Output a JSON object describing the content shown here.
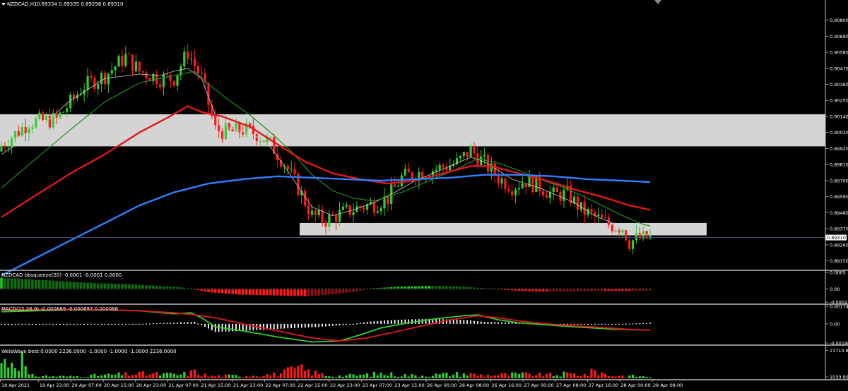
{
  "header": {
    "symbol": "NZDCAD,H1",
    "ohlc": "0.89334 0.89335 0.89298 0.89310"
  },
  "colors": {
    "background": "#000000",
    "bull": "#33cc33",
    "bear": "#ff1a1a",
    "ma_fast": "#cccccc",
    "ma_mid": "#1f8f1f",
    "ma_slow": "#e01818",
    "ma_long": "#2f7fff",
    "zone": "#d4d4d4",
    "macd_main": "#33cc33",
    "macd_signal": "#e01818"
  },
  "chart_data": [
    {
      "type": "candlestick",
      "title": "NZDCAD,H1",
      "ylim": [
        0.891,
        0.9088
      ],
      "y_ticks": [
        "0.90800",
        "0.90690",
        "0.90580",
        "0.90470",
        "0.90360",
        "0.90250",
        "0.90140",
        "0.90030",
        "0.89920",
        "0.89810",
        "0.89700",
        "0.89590",
        "0.89480",
        "0.89370",
        "0.89260",
        "0.89150"
      ],
      "current_price": "0.89310",
      "x_labels": [
        "19 Apr 2021",
        "19 Apr 23:00",
        "20 Apr 07:00",
        "20 Apr 15:00",
        "20 Apr 23:00",
        "21 Apr 07:00",
        "21 Apr 15:00",
        "21 Apr 23:00",
        "22 Apr 07:00",
        "22 Apr 15:00",
        "22 Apr 23:00",
        "23 Apr 07:00",
        "23 Apr 15:00",
        "26 Apr 00:00",
        "26 Apr 08:00",
        "26 Apr 16:00",
        "27 Apr 00:00",
        "27 Apr 08:00",
        "27 Apr 16:00",
        "28 Apr 00:00",
        "28 Apr 08:00"
      ],
      "close_path": [
        [
          0,
          0.8994
        ],
        [
          8,
          0.901
        ],
        [
          16,
          0.9012
        ],
        [
          24,
          0.9035
        ],
        [
          30,
          0.9042
        ],
        [
          36,
          0.9055
        ],
        [
          40,
          0.9045
        ],
        [
          46,
          0.904
        ],
        [
          50,
          0.904
        ],
        [
          54,
          0.9058
        ],
        [
          58,
          0.904
        ],
        [
          62,
          0.9005
        ],
        [
          66,
          0.9003
        ],
        [
          70,
          0.9005
        ],
        [
          74,
          0.9002
        ],
        [
          78,
          0.8995
        ],
        [
          82,
          0.8982
        ],
        [
          86,
          0.8965
        ],
        [
          90,
          0.8946
        ],
        [
          94,
          0.8943
        ],
        [
          98,
          0.8947
        ],
        [
          104,
          0.8952
        ],
        [
          108,
          0.8954
        ],
        [
          112,
          0.8958
        ],
        [
          116,
          0.8972
        ],
        [
          120,
          0.8975
        ],
        [
          126,
          0.8978
        ],
        [
          132,
          0.8982
        ],
        [
          136,
          0.8991
        ],
        [
          140,
          0.8982
        ],
        [
          144,
          0.8972
        ],
        [
          148,
          0.8966
        ],
        [
          152,
          0.897
        ],
        [
          156,
          0.8966
        ],
        [
          160,
          0.896
        ],
        [
          164,
          0.8961
        ],
        [
          168,
          0.895
        ],
        [
          172,
          0.8945
        ],
        [
          176,
          0.894
        ],
        [
          180,
          0.8938
        ],
        [
          182,
          0.8928
        ],
        [
          184,
          0.893
        ],
        [
          188,
          0.8931
        ]
      ],
      "moving_averages": [
        {
          "color_key": "ma_fast",
          "points": [
            [
              0,
              0.8988
            ],
            [
              10,
              0.9004
            ],
            [
              20,
              0.9025
            ],
            [
              30,
              0.904
            ],
            [
              40,
              0.9043
            ],
            [
              46,
              0.9042
            ],
            [
              50,
              0.9045
            ],
            [
              54,
              0.9047
            ],
            [
              58,
              0.904
            ],
            [
              62,
              0.9015
            ],
            [
              66,
              0.9006
            ],
            [
              70,
              0.9004
            ],
            [
              74,
              0.9
            ],
            [
              78,
              0.8993
            ],
            [
              82,
              0.898
            ],
            [
              86,
              0.8966
            ],
            [
              90,
              0.8952
            ],
            [
              96,
              0.8946
            ],
            [
              102,
              0.895
            ],
            [
              108,
              0.8955
            ],
            [
              114,
              0.8962
            ],
            [
              120,
              0.897
            ],
            [
              126,
              0.8976
            ],
            [
              132,
              0.8982
            ],
            [
              136,
              0.8986
            ],
            [
              140,
              0.8983
            ],
            [
              144,
              0.8977
            ],
            [
              148,
              0.8971
            ],
            [
              152,
              0.8968
            ],
            [
              156,
              0.8965
            ],
            [
              160,
              0.8961
            ],
            [
              166,
              0.8955
            ],
            [
              172,
              0.8946
            ],
            [
              178,
              0.894
            ],
            [
              184,
              0.8933
            ],
            [
              188,
              0.8933
            ]
          ]
        },
        {
          "color_key": "ma_mid",
          "points": [
            [
              0,
              0.8965
            ],
            [
              10,
              0.8985
            ],
            [
              20,
              0.9005
            ],
            [
              30,
              0.9024
            ],
            [
              40,
              0.9037
            ],
            [
              50,
              0.9042
            ],
            [
              56,
              0.9045
            ],
            [
              60,
              0.9036
            ],
            [
              66,
              0.9025
            ],
            [
              72,
              0.9015
            ],
            [
              78,
              0.9003
            ],
            [
              84,
              0.899
            ],
            [
              90,
              0.8974
            ],
            [
              96,
              0.8963
            ],
            [
              102,
              0.8958
            ],
            [
              108,
              0.8956
            ],
            [
              116,
              0.8962
            ],
            [
              124,
              0.897
            ],
            [
              132,
              0.8978
            ],
            [
              138,
              0.8985
            ],
            [
              144,
              0.8982
            ],
            [
              150,
              0.8977
            ],
            [
              156,
              0.8971
            ],
            [
              162,
              0.8966
            ],
            [
              168,
              0.896
            ],
            [
              174,
              0.8953
            ],
            [
              180,
              0.8946
            ],
            [
              186,
              0.894
            ],
            [
              188,
              0.8939
            ]
          ]
        },
        {
          "color_key": "ma_slow",
          "points": [
            [
              0,
              0.8945
            ],
            [
              10,
              0.896
            ],
            [
              20,
              0.8975
            ],
            [
              30,
              0.8988
            ],
            [
              40,
              0.9003
            ],
            [
              48,
              0.9013
            ],
            [
              54,
              0.9021
            ],
            [
              58,
              0.9017
            ],
            [
              64,
              0.9014
            ],
            [
              72,
              0.9007
            ],
            [
              80,
              0.8995
            ],
            [
              88,
              0.8983
            ],
            [
              96,
              0.8975
            ],
            [
              104,
              0.8971
            ],
            [
              112,
              0.8968
            ],
            [
              120,
              0.897
            ],
            [
              128,
              0.8975
            ],
            [
              136,
              0.898
            ],
            [
              142,
              0.898
            ],
            [
              150,
              0.8975
            ],
            [
              158,
              0.897
            ],
            [
              166,
              0.8964
            ],
            [
              174,
              0.8959
            ],
            [
              182,
              0.8953
            ],
            [
              188,
              0.895
            ]
          ]
        },
        {
          "color_key": "ma_long",
          "points": [
            [
              0,
              0.8905
            ],
            [
              10,
              0.8917
            ],
            [
              20,
              0.8929
            ],
            [
              30,
              0.8941
            ],
            [
              40,
              0.8953
            ],
            [
              50,
              0.8962
            ],
            [
              60,
              0.8968
            ],
            [
              70,
              0.8971
            ],
            [
              80,
              0.8973
            ],
            [
              90,
              0.8972
            ],
            [
              100,
              0.8971
            ],
            [
              110,
              0.897
            ],
            [
              120,
              0.8971
            ],
            [
              130,
              0.8972
            ],
            [
              140,
              0.8974
            ],
            [
              150,
              0.8974
            ],
            [
              160,
              0.8973
            ],
            [
              170,
              0.8971
            ],
            [
              180,
              0.897
            ],
            [
              188,
              0.8969
            ]
          ]
        }
      ],
      "zones": [
        {
          "from": 0.89935,
          "to": 0.90155
        },
        {
          "from": 0.89325,
          "to": 0.8941
        }
      ]
    },
    {
      "type": "bar",
      "title": "NZDCAD bbsqueeze(20) -0.0001 -0.0001 0.0000",
      "y_ticks": [
        "0.0005",
        "0.00",
        "-0.0004"
      ],
      "ylim": [
        -0.0004,
        0.0005
      ],
      "momentum": [
        [
          0,
          0.00034
        ],
        [
          10,
          0.00028
        ],
        [
          20,
          0.00022
        ],
        [
          28,
          0.00017
        ],
        [
          36,
          0.00015
        ],
        [
          44,
          0.0001
        ],
        [
          52,
          5e-05
        ],
        [
          55,
          0.0
        ],
        [
          60,
          -0.0001
        ],
        [
          70,
          -0.00018
        ],
        [
          80,
          -0.0002
        ],
        [
          88,
          -0.00022
        ],
        [
          92,
          -0.0002
        ],
        [
          100,
          -0.00012
        ],
        [
          106,
          -2e-05
        ],
        [
          108,
          2e-05
        ],
        [
          116,
          7e-05
        ],
        [
          124,
          9e-05
        ],
        [
          132,
          8e-05
        ],
        [
          140,
          2e-05
        ],
        [
          144,
          -2e-05
        ],
        [
          150,
          -6e-05
        ],
        [
          158,
          -8e-05
        ],
        [
          166,
          -7e-05
        ],
        [
          174,
          -6e-05
        ],
        [
          182,
          -6e-05
        ],
        [
          188,
          -5e-05
        ]
      ]
    },
    {
      "type": "line",
      "title": "MACD(12,26,9) -0.000689 -0.000697 0.000088",
      "y_ticks": [
        "0.001742",
        "0.00",
        "-0.001903"
      ],
      "ylim": [
        -0.001903,
        0.001742
      ],
      "series": [
        {
          "color_key": "macd_main",
          "points": [
            [
              0,
              0.0012
            ],
            [
              10,
              0.0013
            ],
            [
              20,
              0.0014
            ],
            [
              30,
              0.0014
            ],
            [
              40,
              0.0013
            ],
            [
              50,
              0.001
            ],
            [
              55,
              0.0011
            ],
            [
              58,
              0.0006
            ],
            [
              62,
              -0.0003
            ],
            [
              70,
              -0.0007
            ],
            [
              80,
              -0.0013
            ],
            [
              90,
              -0.0018
            ],
            [
              98,
              -0.0017
            ],
            [
              104,
              -0.0011
            ],
            [
              110,
              -0.0004
            ],
            [
              118,
              0.0001
            ],
            [
              126,
              0.0005
            ],
            [
              134,
              0.0008
            ],
            [
              138,
              0.0009
            ],
            [
              144,
              0.0004
            ],
            [
              150,
              0.0001
            ],
            [
              158,
              -0.0001
            ],
            [
              166,
              -0.0003
            ],
            [
              176,
              -0.0005
            ],
            [
              184,
              -0.0006
            ],
            [
              188,
              -0.0006
            ]
          ]
        },
        {
          "color_key": "macd_signal",
          "points": [
            [
              0,
              0.0014
            ],
            [
              10,
              0.0014
            ],
            [
              20,
              0.0014
            ],
            [
              30,
              0.0014
            ],
            [
              40,
              0.0013
            ],
            [
              50,
              0.0011
            ],
            [
              56,
              0.0009
            ],
            [
              62,
              0.0006
            ],
            [
              70,
              0.0
            ],
            [
              80,
              -0.0007
            ],
            [
              90,
              -0.0014
            ],
            [
              98,
              -0.0017
            ],
            [
              106,
              -0.0014
            ],
            [
              114,
              -0.0008
            ],
            [
              122,
              -0.0002
            ],
            [
              130,
              0.0004
            ],
            [
              138,
              0.0008
            ],
            [
              144,
              0.0006
            ],
            [
              150,
              0.0003
            ],
            [
              158,
              0.0
            ],
            [
              166,
              -0.0002
            ],
            [
              176,
              -0.0004
            ],
            [
              184,
              -0.0006
            ],
            [
              188,
              -0.0006
            ]
          ]
        }
      ],
      "histogram": [
        [
          0,
          -0.0001
        ],
        [
          20,
          -0.0001
        ],
        [
          40,
          0.0
        ],
        [
          56,
          0.0002
        ],
        [
          62,
          -0.0008
        ],
        [
          70,
          -0.0007
        ],
        [
          80,
          -0.0005
        ],
        [
          92,
          -0.0003
        ],
        [
          100,
          -0.0001
        ],
        [
          106,
          0.0002
        ],
        [
          114,
          0.0004
        ],
        [
          124,
          0.0005
        ],
        [
          134,
          0.0004
        ],
        [
          140,
          0.0002
        ],
        [
          150,
          0.0001
        ],
        [
          160,
          0.0
        ],
        [
          170,
          -0.0001
        ],
        [
          180,
          0.0
        ],
        [
          188,
          0.0001
        ]
      ]
    },
    {
      "type": "bar",
      "title": "WeisWave best 0.0000 2236.0000 -1.0000 -1.0000 -1.0000 2236.0000",
      "y_ticks": [
        "21710.85",
        "1033.85"
      ],
      "ylim": [
        0,
        23000
      ],
      "volume_profile": [
        [
          0,
          18000
        ],
        [
          6,
          21700
        ],
        [
          8,
          3000
        ],
        [
          20,
          2000
        ],
        [
          40,
          5000
        ],
        [
          52,
          4000
        ],
        [
          56,
          7000
        ],
        [
          60,
          2500
        ],
        [
          70,
          3000
        ],
        [
          80,
          4500
        ],
        [
          86,
          11000
        ],
        [
          90,
          6500
        ],
        [
          96,
          2500
        ],
        [
          104,
          3500
        ],
        [
          110,
          5000
        ],
        [
          120,
          3000
        ],
        [
          126,
          4000
        ],
        [
          134,
          5000
        ],
        [
          140,
          3500
        ],
        [
          150,
          4500
        ],
        [
          160,
          3500
        ],
        [
          164,
          5000
        ],
        [
          170,
          4000
        ],
        [
          172,
          9000
        ],
        [
          176,
          3000
        ],
        [
          184,
          2500
        ],
        [
          188,
          1500
        ]
      ]
    }
  ]
}
